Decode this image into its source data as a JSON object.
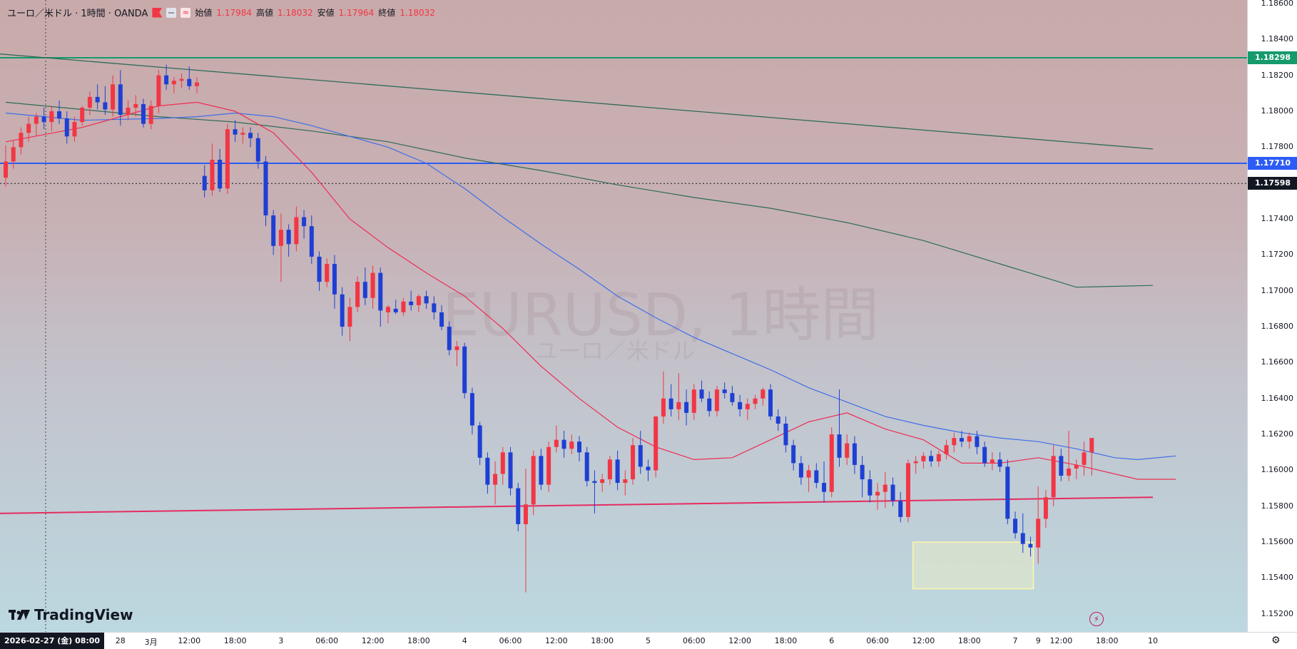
{
  "legend": {
    "symbol": "ユーロ／米ドル · 1時間 · OANDA",
    "open_label": "始値",
    "open": "1.17984",
    "high_label": "高値",
    "high": "1.18032",
    "low_label": "安値",
    "low": "1.17964",
    "close_label": "終値",
    "close": "1.18032"
  },
  "watermark": {
    "title": "EURUSD, 1時間",
    "subtitle": "ユーロ／米ドル"
  },
  "logo": {
    "text": "TradingView"
  },
  "colors": {
    "up": "#f23645",
    "down": "#1e3fd4",
    "ma_fast": "#ef2d55",
    "ma_mid": "#3f6ee8",
    "ma_slow": "#2e6b58",
    "h_line_green": "#159a6c",
    "h_line_blue": "#2c5cf5",
    "trend_line": "#e62c60",
    "highlight_box": "#fff7a8"
  },
  "time_cursor": "2026-02-27 (金)  08:00",
  "chart_data": {
    "type": "candlestick",
    "symbol": "EURUSD",
    "timeframe": "1時間",
    "ylim": [
      1.151,
      1.186
    ],
    "price_ticks": [
      "1.18600",
      "1.18400",
      "1.18200",
      "1.18000",
      "1.17800",
      "1.17400",
      "1.17200",
      "1.17000",
      "1.16800",
      "1.16600",
      "1.16400",
      "1.16200",
      "1.16000",
      "1.15800",
      "1.15600",
      "1.15400",
      "1.15200"
    ],
    "price_labels": [
      {
        "value": "1.18298",
        "color": "#159a6c"
      },
      {
        "value": "1.17710",
        "color": "#2c5cf5"
      },
      {
        "value": "1.17598",
        "color": "#131722"
      }
    ],
    "time_ticks": [
      "18:00",
      "28",
      "3月",
      "12:00",
      "18:00",
      "3",
      "06:00",
      "12:00",
      "18:00",
      "4",
      "06:00",
      "12:00",
      "18:00",
      "5",
      "06:00",
      "12:00",
      "18:00",
      "6",
      "06:00",
      "12:00",
      "18:00",
      "7",
      "9",
      "12:00",
      "18:00",
      "10"
    ],
    "time_tick_index": [
      6,
      15,
      19,
      24,
      30,
      36,
      42,
      48,
      54,
      60,
      66,
      72,
      78,
      84,
      90,
      96,
      102,
      108,
      114,
      120,
      126,
      132,
      135,
      138,
      144,
      150
    ],
    "horizontal_lines": [
      {
        "price": 1.18298,
        "color": "#159a6c"
      },
      {
        "price": 1.1771,
        "color": "#2c5cf5"
      },
      {
        "price": 1.17598,
        "style": "dotted",
        "color": "#131722"
      }
    ],
    "trend_lines": [
      {
        "from": [
          -1,
          1.1832
        ],
        "to": [
          150,
          1.1779
        ],
        "color": "#2e6b58"
      },
      {
        "from": [
          -1,
          1.1576
        ],
        "to": [
          150,
          1.1585
        ],
        "color": "#e62c60"
      }
    ],
    "highlight_box": {
      "x": [
        119,
        134
      ],
      "y": [
        1.1534,
        1.156
      ]
    },
    "candles": [
      [
        1.1763,
        1.1781,
        1.1758,
        1.1772
      ],
      [
        1.1772,
        1.1784,
        1.1768,
        1.178
      ],
      [
        1.178,
        1.1791,
        1.1776,
        1.1788
      ],
      [
        1.1788,
        1.1797,
        1.1783,
        1.1793
      ],
      [
        1.1793,
        1.1799,
        1.1786,
        1.1797
      ],
      [
        1.1797,
        1.1802,
        1.179,
        1.1794
      ],
      [
        1.1794,
        1.1803,
        1.1789,
        1.18
      ],
      [
        1.18,
        1.1806,
        1.1793,
        1.1796
      ],
      [
        1.1796,
        1.18,
        1.1782,
        1.1786
      ],
      [
        1.1786,
        1.1797,
        1.1783,
        1.1794
      ],
      [
        1.1794,
        1.1803,
        1.1792,
        1.1802
      ],
      [
        1.1802,
        1.1811,
        1.1798,
        1.1808
      ],
      [
        1.1808,
        1.1815,
        1.1801,
        1.1805
      ],
      [
        1.1805,
        1.1814,
        1.1798,
        1.1801
      ],
      [
        1.1801,
        1.182,
        1.1797,
        1.1815
      ],
      [
        1.1815,
        1.1823,
        1.1792,
        1.1798
      ],
      [
        1.1798,
        1.1806,
        1.1795,
        1.1802
      ],
      [
        1.1802,
        1.1809,
        1.1797,
        1.1804
      ],
      [
        1.1804,
        1.1807,
        1.1791,
        1.1793
      ],
      [
        1.1793,
        1.1806,
        1.179,
        1.1803
      ],
      [
        1.1803,
        1.1823,
        1.1799,
        1.182
      ],
      [
        1.182,
        1.1826,
        1.1812,
        1.1815
      ],
      [
        1.1815,
        1.1819,
        1.181,
        1.1817
      ],
      [
        1.1817,
        1.1821,
        1.1813,
        1.1818
      ],
      [
        1.1818,
        1.1825,
        1.1812,
        1.1814
      ],
      [
        1.1814,
        1.1819,
        1.181,
        1.1816
      ],
      [
        1.1764,
        1.177,
        1.1752,
        1.1756
      ],
      [
        1.1756,
        1.1782,
        1.1753,
        1.1773
      ],
      [
        1.1773,
        1.1779,
        1.1755,
        1.1757
      ],
      [
        1.1757,
        1.1793,
        1.1754,
        1.179
      ],
      [
        1.179,
        1.1795,
        1.1783,
        1.1787
      ],
      [
        1.1787,
        1.1791,
        1.1782,
        1.1788
      ],
      [
        1.1788,
        1.1791,
        1.178,
        1.1785
      ],
      [
        1.1785,
        1.1788,
        1.1768,
        1.1772
      ],
      [
        1.1772,
        1.1775,
        1.1736,
        1.1742
      ],
      [
        1.1742,
        1.1745,
        1.172,
        1.1725
      ],
      [
        1.1725,
        1.1743,
        1.1705,
        1.1734
      ],
      [
        1.1734,
        1.1737,
        1.1719,
        1.1726
      ],
      [
        1.1726,
        1.1747,
        1.1722,
        1.1741
      ],
      [
        1.1741,
        1.1745,
        1.1729,
        1.1736
      ],
      [
        1.1736,
        1.1742,
        1.1715,
        1.1719
      ],
      [
        1.1719,
        1.1722,
        1.17,
        1.1705
      ],
      [
        1.1705,
        1.1718,
        1.1702,
        1.1715
      ],
      [
        1.1715,
        1.172,
        1.169,
        1.1698
      ],
      [
        1.1698,
        1.1702,
        1.1675,
        1.168
      ],
      [
        1.168,
        1.1696,
        1.1672,
        1.1691
      ],
      [
        1.1691,
        1.1708,
        1.1688,
        1.1705
      ],
      [
        1.1705,
        1.1713,
        1.1692,
        1.1696
      ],
      [
        1.1696,
        1.1714,
        1.169,
        1.171
      ],
      [
        1.171,
        1.1713,
        1.168,
        1.1689
      ],
      [
        1.1688,
        1.1692,
        1.1682,
        1.1691
      ],
      [
        1.169,
        1.1695,
        1.1687,
        1.1688
      ],
      [
        1.1688,
        1.1696,
        1.1686,
        1.1694
      ],
      [
        1.1694,
        1.17,
        1.1689,
        1.1692
      ],
      [
        1.1692,
        1.1698,
        1.1688,
        1.1697
      ],
      [
        1.1697,
        1.17,
        1.169,
        1.1693
      ],
      [
        1.1693,
        1.1697,
        1.1684,
        1.1688
      ],
      [
        1.1688,
        1.1692,
        1.1678,
        1.168
      ],
      [
        1.168,
        1.1683,
        1.1664,
        1.1667
      ],
      [
        1.1667,
        1.1672,
        1.1658,
        1.1669
      ],
      [
        1.1669,
        1.1671,
        1.164,
        1.1643
      ],
      [
        1.1643,
        1.1646,
        1.162,
        1.1625
      ],
      [
        1.1625,
        1.1627,
        1.1603,
        1.1607
      ],
      [
        1.1607,
        1.161,
        1.1587,
        1.1592
      ],
      [
        1.1592,
        1.1605,
        1.1581,
        1.1598
      ],
      [
        1.1598,
        1.1613,
        1.1592,
        1.161
      ],
      [
        1.161,
        1.1613,
        1.1586,
        1.159
      ],
      [
        1.159,
        1.1593,
        1.1566,
        1.157
      ],
      [
        1.157,
        1.1601,
        1.1532,
        1.1581
      ],
      [
        1.1581,
        1.1611,
        1.1575,
        1.1608
      ],
      [
        1.1608,
        1.1612,
        1.1589,
        1.1592
      ],
      [
        1.1592,
        1.1616,
        1.1588,
        1.1613
      ],
      [
        1.1613,
        1.1625,
        1.161,
        1.1617
      ],
      [
        1.1617,
        1.1622,
        1.1607,
        1.1612
      ],
      [
        1.1612,
        1.162,
        1.1609,
        1.1616
      ],
      [
        1.1616,
        1.1619,
        1.1605,
        1.161
      ],
      [
        1.161,
        1.1613,
        1.1591,
        1.1594
      ],
      [
        1.1594,
        1.16,
        1.1576,
        1.1593
      ],
      [
        1.1593,
        1.1598,
        1.1588,
        1.1595
      ],
      [
        1.1595,
        1.1608,
        1.1592,
        1.1606
      ],
      [
        1.1606,
        1.1611,
        1.1589,
        1.1593
      ],
      [
        1.1593,
        1.16,
        1.1586,
        1.1595
      ],
      [
        1.1595,
        1.1618,
        1.1592,
        1.1614
      ],
      [
        1.1614,
        1.1622,
        1.1598,
        1.1602
      ],
      [
        1.1602,
        1.1606,
        1.1594,
        1.16
      ],
      [
        1.16,
        1.163,
        1.1596,
        1.163
      ],
      [
        1.163,
        1.1655,
        1.1626,
        1.164
      ],
      [
        1.164,
        1.1648,
        1.163,
        1.1634
      ],
      [
        1.1634,
        1.1654,
        1.1628,
        1.1638
      ],
      [
        1.1638,
        1.1645,
        1.1625,
        1.1632
      ],
      [
        1.1632,
        1.1648,
        1.1628,
        1.1645
      ],
      [
        1.1645,
        1.165,
        1.1638,
        1.164
      ],
      [
        1.164,
        1.1644,
        1.163,
        1.1633
      ],
      [
        1.1633,
        1.1647,
        1.163,
        1.1645
      ],
      [
        1.1645,
        1.1649,
        1.164,
        1.1643
      ],
      [
        1.1643,
        1.1647,
        1.1636,
        1.1638
      ],
      [
        1.1638,
        1.1642,
        1.163,
        1.1634
      ],
      [
        1.1634,
        1.164,
        1.1628,
        1.1637
      ],
      [
        1.1637,
        1.1642,
        1.1634,
        1.164
      ],
      [
        1.164,
        1.1646,
        1.1636,
        1.1645
      ],
      [
        1.1645,
        1.1648,
        1.1628,
        1.163
      ],
      [
        1.163,
        1.1634,
        1.1622,
        1.1626
      ],
      [
        1.1626,
        1.163,
        1.161,
        1.1614
      ],
      [
        1.1614,
        1.1617,
        1.16,
        1.1604
      ],
      [
        1.1604,
        1.1608,
        1.1592,
        1.1596
      ],
      [
        1.1596,
        1.1603,
        1.1588,
        1.16
      ],
      [
        1.16,
        1.1604,
        1.159,
        1.1593
      ],
      [
        1.1593,
        1.1605,
        1.1582,
        1.1588
      ],
      [
        1.1588,
        1.1624,
        1.1585,
        1.162
      ],
      [
        1.162,
        1.1645,
        1.1602,
        1.1607
      ],
      [
        1.1607,
        1.162,
        1.1603,
        1.1615
      ],
      [
        1.1615,
        1.1619,
        1.1598,
        1.1603
      ],
      [
        1.1603,
        1.1608,
        1.1585,
        1.1595
      ],
      [
        1.1595,
        1.16,
        1.1582,
        1.1586
      ],
      [
        1.1586,
        1.1593,
        1.1578,
        1.1588
      ],
      [
        1.1588,
        1.1599,
        1.1579,
        1.1592
      ],
      [
        1.1592,
        1.1596,
        1.158,
        1.1583
      ],
      [
        1.1583,
        1.1588,
        1.1571,
        1.1574
      ],
      [
        1.1574,
        1.1606,
        1.1571,
        1.1604
      ],
      [
        1.1604,
        1.1608,
        1.1598,
        1.1605
      ],
      [
        1.1605,
        1.161,
        1.1601,
        1.1608
      ],
      [
        1.1608,
        1.1611,
        1.1602,
        1.1605
      ],
      [
        1.1605,
        1.1611,
        1.1602,
        1.1609
      ],
      [
        1.1609,
        1.1617,
        1.1606,
        1.1614
      ],
      [
        1.1614,
        1.1621,
        1.161,
        1.1618
      ],
      [
        1.1618,
        1.1622,
        1.1613,
        1.1616
      ],
      [
        1.1616,
        1.1621,
        1.1612,
        1.1619
      ],
      [
        1.1619,
        1.1622,
        1.1609,
        1.1613
      ],
      [
        1.1613,
        1.1616,
        1.1602,
        1.1604
      ],
      [
        1.1604,
        1.161,
        1.16,
        1.1606
      ],
      [
        1.1606,
        1.161,
        1.1599,
        1.1602
      ],
      [
        1.1602,
        1.1606,
        1.157,
        1.1573
      ],
      [
        1.1573,
        1.1577,
        1.1562,
        1.1565
      ],
      [
        1.1565,
        1.1576,
        1.1554,
        1.1559
      ],
      [
        1.1559,
        1.1563,
        1.1552,
        1.1557
      ],
      [
        1.1557,
        1.1591,
        1.1548,
        1.1573
      ],
      [
        1.1573,
        1.1589,
        1.1568,
        1.1585
      ],
      [
        1.1585,
        1.1614,
        1.158,
        1.1608
      ],
      [
        1.1608,
        1.1612,
        1.1594,
        1.1597
      ],
      [
        1.1597,
        1.1622,
        1.1594,
        1.1601
      ],
      [
        1.1601,
        1.1606,
        1.1595,
        1.1603
      ],
      [
        1.1603,
        1.1616,
        1.1597,
        1.161
      ],
      [
        1.161,
        1.1618,
        1.1597,
        1.1618
      ]
    ],
    "ma_fast": [
      [
        0,
        1.1783
      ],
      [
        10,
        1.1791
      ],
      [
        20,
        1.1803
      ],
      [
        25,
        1.1805
      ],
      [
        30,
        1.18
      ],
      [
        35,
        1.1788
      ],
      [
        40,
        1.1766
      ],
      [
        45,
        1.174
      ],
      [
        50,
        1.1724
      ],
      [
        55,
        1.171
      ],
      [
        60,
        1.1697
      ],
      [
        65,
        1.1679
      ],
      [
        70,
        1.1658
      ],
      [
        75,
        1.164
      ],
      [
        80,
        1.1624
      ],
      [
        85,
        1.1613
      ],
      [
        90,
        1.1606
      ],
      [
        95,
        1.1607
      ],
      [
        100,
        1.1617
      ],
      [
        105,
        1.1627
      ],
      [
        110,
        1.1632
      ],
      [
        115,
        1.1623
      ],
      [
        120,
        1.1617
      ],
      [
        125,
        1.1604
      ],
      [
        130,
        1.1604
      ],
      [
        135,
        1.1607
      ],
      [
        140,
        1.1603
      ],
      [
        145,
        1.1598
      ],
      [
        148,
        1.1595
      ],
      [
        153,
        1.1595
      ]
    ],
    "ma_mid": [
      [
        0,
        1.1799
      ],
      [
        10,
        1.1795
      ],
      [
        20,
        1.1796
      ],
      [
        25,
        1.1797
      ],
      [
        30,
        1.1799
      ],
      [
        35,
        1.1797
      ],
      [
        40,
        1.1792
      ],
      [
        45,
        1.1786
      ],
      [
        50,
        1.178
      ],
      [
        55,
        1.1771
      ],
      [
        60,
        1.1757
      ],
      [
        65,
        1.1741
      ],
      [
        70,
        1.1726
      ],
      [
        75,
        1.1712
      ],
      [
        80,
        1.1697
      ],
      [
        85,
        1.1685
      ],
      [
        90,
        1.1674
      ],
      [
        95,
        1.1665
      ],
      [
        100,
        1.1656
      ],
      [
        105,
        1.1646
      ],
      [
        110,
        1.1638
      ],
      [
        115,
        1.163
      ],
      [
        120,
        1.1625
      ],
      [
        125,
        1.1621
      ],
      [
        130,
        1.1618
      ],
      [
        135,
        1.1616
      ],
      [
        140,
        1.1612
      ],
      [
        145,
        1.1607
      ],
      [
        148,
        1.1606
      ],
      [
        153,
        1.1608
      ]
    ],
    "ma_slow": [
      [
        0,
        1.1805
      ],
      [
        10,
        1.1801
      ],
      [
        20,
        1.1797
      ],
      [
        30,
        1.1794
      ],
      [
        40,
        1.1789
      ],
      [
        50,
        1.1783
      ],
      [
        60,
        1.1774
      ],
      [
        70,
        1.1767
      ],
      [
        80,
        1.1759
      ],
      [
        90,
        1.1752
      ],
      [
        100,
        1.1746
      ],
      [
        110,
        1.1738
      ],
      [
        120,
        1.1728
      ],
      [
        130,
        1.1715
      ],
      [
        140,
        1.1702
      ],
      [
        150,
        1.1703
      ]
    ]
  }
}
